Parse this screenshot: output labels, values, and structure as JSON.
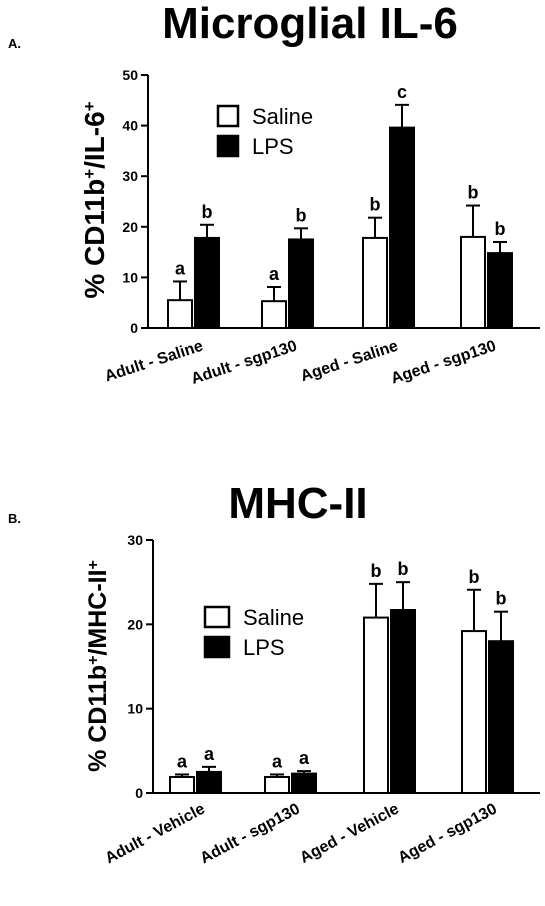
{
  "chart_data": [
    {
      "type": "bar",
      "panel_label": "A.",
      "title": "Microglial IL-6",
      "ylabel_prefix": "%  CD11b",
      "ylabel_sup1": "+",
      "ylabel_mid": "/IL-6",
      "ylabel_sup2": "+",
      "ylim": [
        0,
        50
      ],
      "yticks": [
        "0",
        "10",
        "20",
        "30",
        "40",
        "50"
      ],
      "categories": [
        "Adult - Saline",
        "Adult - sgp130",
        "Aged - Saline",
        "Aged - sgp130"
      ],
      "legend_position": "top-left",
      "series": [
        {
          "name": "Saline",
          "values": [
            5.5,
            5.3,
            17.8,
            18.0
          ],
          "errors": [
            3.7,
            2.8,
            4.0,
            6.2
          ],
          "labels": [
            "a",
            "a",
            "b",
            "b"
          ],
          "color": "#ffffff"
        },
        {
          "name": "LPS",
          "values": [
            17.8,
            17.5,
            39.6,
            14.8
          ],
          "errors": [
            2.6,
            2.2,
            4.5,
            2.2
          ],
          "labels": [
            "b",
            "b",
            "c",
            "b"
          ],
          "color": "#000000"
        }
      ]
    },
    {
      "type": "bar",
      "panel_label": "B.",
      "title": "MHC-II",
      "ylabel_prefix": "%  CD11b",
      "ylabel_sup1": "+",
      "ylabel_mid": "/MHC-II",
      "ylabel_sup2": "+",
      "ylim": [
        0,
        30
      ],
      "yticks": [
        "0",
        "10",
        "20",
        "30"
      ],
      "categories": [
        "Adult - Vehicle",
        "Adult - sgp130",
        "Aged - Vehicle",
        "Aged - sgp130"
      ],
      "legend_position": "left",
      "series": [
        {
          "name": "Saline",
          "values": [
            1.9,
            1.9,
            20.8,
            19.2
          ],
          "errors": [
            0.3,
            0.3,
            4.0,
            4.9
          ],
          "labels": [
            "a",
            "a",
            "b",
            "b"
          ],
          "color": "#ffffff"
        },
        {
          "name": "LPS",
          "values": [
            2.5,
            2.3,
            21.7,
            18.0
          ],
          "errors": [
            0.6,
            0.3,
            3.3,
            3.5
          ],
          "labels": [
            "a",
            "a",
            "b",
            "b"
          ],
          "color": "#000000"
        }
      ]
    }
  ]
}
